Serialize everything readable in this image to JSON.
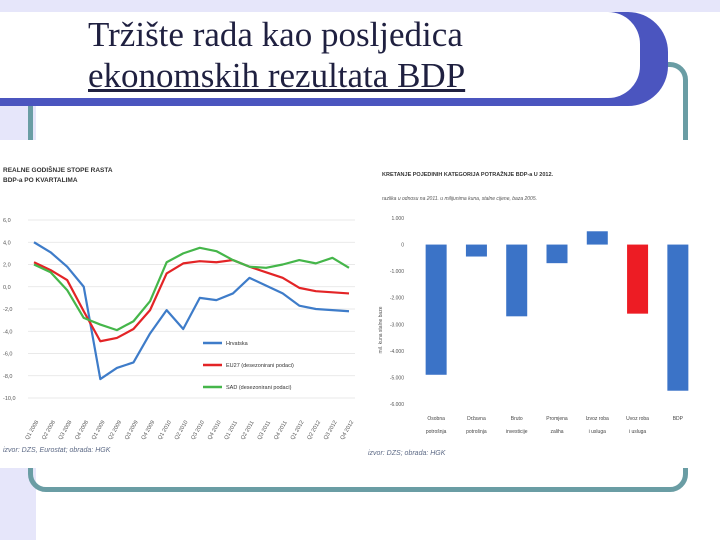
{
  "slide": {
    "title_line1": "Tržište rada kao posljedica",
    "title_line2": "ekonomskih rezultata BDP"
  },
  "colors": {
    "banner": "#4b55bf",
    "lavender": "#e6e6fa",
    "frame_teal": "#6a9da4",
    "series_blue": "#3e7cc9",
    "series_red": "#e32426",
    "series_green": "#45b64a",
    "bar_blue": "#3b73c7",
    "bar_red": "#ed1c24"
  },
  "left_chart": {
    "title_line1": "REALNE GODIŠNJE STOPE RASTA",
    "title_line2": "BDP-a PO KVARTALIMA",
    "source": "izvor: DZS, Eurostat; obrada: HGK"
  },
  "right_chart": {
    "title": "KRETANJE POJEDINIH KATEGORIJA POTRAŽNJE BDP-a U 2012.",
    "subtitle": "razlika u odnosu na 2011. u milijunima kuna, stalne cijene, baza 2005.",
    "ylabel": "mil. kuna stalne baze",
    "source": "izvor: DZS; obrada: HGK"
  },
  "chart_data": [
    {
      "type": "line",
      "title": "REALNE GODIŠNJE STOPE RASTA BDP-a PO KVARTALIMA",
      "x": [
        "Q1 2008",
        "Q2 2008",
        "Q3 2008",
        "Q4 2008",
        "Q1 2009",
        "Q2 2009",
        "Q3 2009",
        "Q4 2009",
        "Q1 2010",
        "Q2 2010",
        "Q3 2010",
        "Q4 2010",
        "Q1 2011",
        "Q2 2011",
        "Q3 2011",
        "Q4 2011",
        "Q1 2012",
        "Q2 2012",
        "Q3 2012",
        "Q4 2012"
      ],
      "ylim": [
        -10,
        6
      ],
      "yticks": [
        "6,0",
        "4,0",
        "2,0",
        "0,0",
        "-2,0",
        "-4,0",
        "-6,0",
        "-8,0",
        "-10,0"
      ],
      "series": [
        {
          "name": "Hrvatska",
          "color": "#3e7cc9",
          "values": [
            4.0,
            3.1,
            1.8,
            0.0,
            -8.3,
            -7.3,
            -6.8,
            -4.2,
            -2.1,
            -3.8,
            -1.0,
            -1.2,
            -0.6,
            0.8,
            0.1,
            -0.6,
            -1.7,
            -2.0,
            -2.1,
            -2.2
          ]
        },
        {
          "name": "EU27 (desezonirani podaci)",
          "color": "#e32426",
          "values": [
            2.2,
            1.5,
            0.6,
            -2.2,
            -4.9,
            -4.6,
            -3.8,
            -2.1,
            1.2,
            2.1,
            2.3,
            2.2,
            2.4,
            1.8,
            1.3,
            0.8,
            -0.1,
            -0.4,
            -0.5,
            -0.6
          ]
        },
        {
          "name": "SAD (desezonirani podaci)",
          "color": "#45b64a",
          "values": [
            2.0,
            1.3,
            -0.3,
            -2.8,
            -3.4,
            -3.9,
            -3.1,
            -1.3,
            2.2,
            3.0,
            3.5,
            3.2,
            2.4,
            1.8,
            1.7,
            2.0,
            2.4,
            2.1,
            2.6,
            1.7
          ]
        }
      ]
    },
    {
      "type": "bar",
      "title": "KRETANJE POJEDINIH KATEGORIJA POTRAŽNJE BDP-a U 2012.",
      "ylabel": "mil. kuna stalne baze",
      "ylim": [
        -6000,
        1000
      ],
      "yticks": [
        "1.000",
        "0",
        "-1.000",
        "-2.000",
        "-3.000",
        "-4.000",
        "-5.000",
        "-6.000"
      ],
      "categories": [
        "Osobna potrošnja",
        "Državna potrošnja",
        "Bruto investicije",
        "Promjena zaliha",
        "Izvoz roba i usluga",
        "Uvoz roba i usluga",
        "BDP"
      ],
      "values": [
        -4900,
        -450,
        -2700,
        -700,
        500,
        -2600,
        -5500
      ],
      "colors": [
        "#3b73c7",
        "#3b73c7",
        "#3b73c7",
        "#3b73c7",
        "#3b73c7",
        "#ed1c24",
        "#3b73c7"
      ]
    }
  ]
}
